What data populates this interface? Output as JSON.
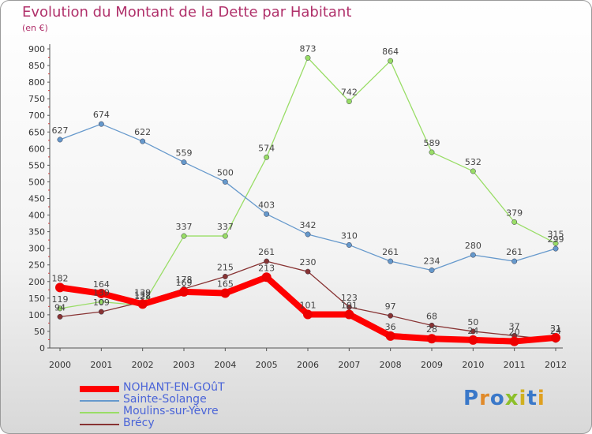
{
  "title": "Evolution du Montant de la Dette par Habitant",
  "subtitle": "(en €)",
  "brand": {
    "letters": [
      "P",
      "r",
      "o",
      "x",
      "i",
      "t",
      "i"
    ],
    "colors": [
      "#3a78c9",
      "#e08a2a",
      "#3a78c9",
      "#8cbf2a",
      "#d0b020",
      "#3a78c9",
      "#e0a020"
    ]
  },
  "chart_data": {
    "type": "line",
    "title": "Evolution du Montant de la Dette par Habitant",
    "ylabel": "(en €)",
    "x": [
      "2000",
      "2001",
      "2002",
      "2003",
      "2004",
      "2005",
      "2006",
      "2007",
      "2008",
      "2009",
      "2010",
      "2011",
      "2012"
    ],
    "ylim": [
      0,
      900
    ],
    "yticks": [
      "0",
      "50",
      "100",
      "150",
      "200",
      "250",
      "300",
      "350",
      "400",
      "450",
      "500",
      "550",
      "600",
      "650",
      "700",
      "750",
      "800",
      "850",
      "900"
    ],
    "grid": false,
    "legend_position": "bottom-left",
    "series": [
      {
        "name": "NOHANT-EN-GOûT",
        "color": "#ff0000",
        "values": [
          182,
          164,
          132,
          169,
          165,
          213,
          101,
          101,
          36,
          28,
          24,
          20,
          31
        ],
        "labels": [
          "182",
          "164",
          "132",
          "169",
          "165",
          "213",
          "101",
          "101",
          "36",
          "28",
          "24",
          "20",
          "31"
        ]
      },
      {
        "name": "Sainte-Solange",
        "color": "#6699cc",
        "values": [
          627,
          674,
          622,
          559,
          500,
          403,
          342,
          310,
          261,
          234,
          280,
          261,
          299
        ],
        "labels": [
          "627",
          "674",
          "622",
          "559",
          "500",
          "403",
          "342",
          "310",
          "261",
          "234",
          "280",
          "261",
          "299"
        ]
      },
      {
        "name": "Moulins-sur-Yèvre",
        "color": "#99dd66",
        "values": [
          119,
          139,
          128,
          337,
          337,
          574,
          873,
          742,
          864,
          589,
          532,
          379,
          315
        ],
        "labels": [
          "119",
          "139",
          "128",
          "337",
          "337",
          "574",
          "873",
          "742",
          "864",
          "589",
          "532",
          "379",
          "315"
        ]
      },
      {
        "name": "Brécy",
        "color": "#883333",
        "values": [
          94,
          109,
          139,
          178,
          215,
          261,
          230,
          123,
          97,
          68,
          50,
          37,
          24
        ],
        "labels": [
          "94",
          "109",
          "139",
          "178",
          "215",
          "261",
          "230",
          "123",
          "97",
          "68",
          "50",
          "37",
          "24"
        ]
      }
    ]
  }
}
